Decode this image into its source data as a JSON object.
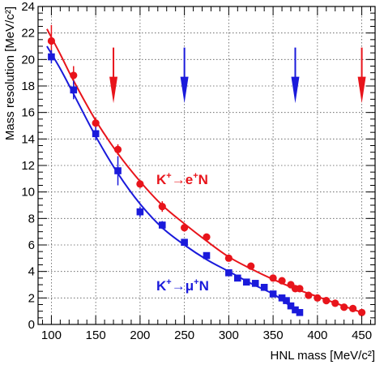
{
  "chart_data": {
    "type": "scatter",
    "xlabel": "HNL mass [MeV/c²]",
    "ylabel": "Mass resolution [MeV/c²]",
    "xlim": [
      85,
      465
    ],
    "ylim": [
      0,
      24
    ],
    "x_ticks": [
      100,
      150,
      200,
      250,
      300,
      350,
      400,
      450
    ],
    "y_ticks": [
      0,
      2,
      4,
      6,
      8,
      10,
      12,
      14,
      16,
      18,
      20,
      22,
      24
    ],
    "grid": true,
    "series": [
      {
        "name": "K⁺→e⁺N",
        "color": "#e8141b",
        "marker": "circle",
        "x": [
          100,
          125,
          150,
          175,
          200,
          225,
          250,
          275,
          300,
          325,
          350,
          360,
          370,
          375,
          380,
          390,
          400,
          410,
          420,
          430,
          440,
          450
        ],
        "y": [
          21.4,
          18.8,
          15.2,
          13.2,
          10.6,
          8.9,
          7.3,
          6.6,
          5.0,
          4.4,
          3.5,
          3.3,
          3.0,
          2.7,
          2.7,
          2.2,
          2.0,
          1.8,
          1.6,
          1.3,
          1.2,
          0.9
        ],
        "yerr": [
          1.2,
          0.7,
          0.4,
          0.4,
          0.3,
          0.4,
          0.3,
          0.2,
          0.2,
          0.2,
          0.2,
          0.2,
          0.2,
          0.2,
          0.2,
          0.2,
          0.2,
          0.2,
          0.2,
          0.2,
          0.2,
          0.2
        ]
      },
      {
        "name": "K⁺→μ⁺N",
        "color": "#1a1adb",
        "marker": "square",
        "x": [
          100,
          125,
          150,
          175,
          200,
          225,
          250,
          275,
          300,
          310,
          320,
          330,
          340,
          350,
          360,
          365,
          370,
          375,
          380
        ],
        "y": [
          20.2,
          17.7,
          14.4,
          11.6,
          8.5,
          7.5,
          6.2,
          5.2,
          3.9,
          3.5,
          3.2,
          3.1,
          2.8,
          2.3,
          2.0,
          1.8,
          1.4,
          1.1,
          0.9
        ],
        "yerr": [
          0.5,
          0.7,
          0.5,
          1.1,
          0.4,
          0.3,
          0.2,
          0.2,
          0.2,
          0.2,
          0.2,
          0.2,
          0.2,
          0.2,
          0.2,
          0.2,
          0.2,
          0.2,
          0.2
        ]
      }
    ],
    "fit_curves": [
      {
        "series": "K⁺→e⁺N",
        "x": [
          95,
          110,
          125,
          150,
          175,
          200,
          225,
          250,
          275,
          300,
          325,
          350,
          375,
          400,
          425,
          450
        ],
        "y": [
          22.3,
          20.4,
          18.4,
          15.4,
          12.9,
          10.8,
          9.0,
          7.6,
          6.3,
          5.1,
          4.2,
          3.4,
          2.7,
          2.1,
          1.5,
          0.9
        ]
      },
      {
        "series": "K⁺→μ⁺N",
        "x": [
          95,
          110,
          125,
          150,
          175,
          200,
          225,
          250,
          275,
          300,
          325,
          350,
          365,
          380
        ],
        "y": [
          21.0,
          19.3,
          17.4,
          14.2,
          11.4,
          9.1,
          7.3,
          6.0,
          4.9,
          4.0,
          3.1,
          2.3,
          1.6,
          0.9
        ]
      }
    ],
    "arrows": [
      {
        "x": 170,
        "color": "#e8141b"
      },
      {
        "x": 250,
        "color": "#1a1adb"
      },
      {
        "x": 375,
        "color": "#1a1adb"
      },
      {
        "x": 450,
        "color": "#e8141b"
      }
    ],
    "annotations": [
      {
        "text_main": "K",
        "sup1": "+",
        "mid": "→e",
        "sup2": "+",
        "tail": "N",
        "color": "#e8141b"
      },
      {
        "text_main": "K",
        "sup1": "+",
        "mid": "→μ",
        "sup2": "+",
        "tail": "N",
        "color": "#1a1adb"
      }
    ]
  }
}
